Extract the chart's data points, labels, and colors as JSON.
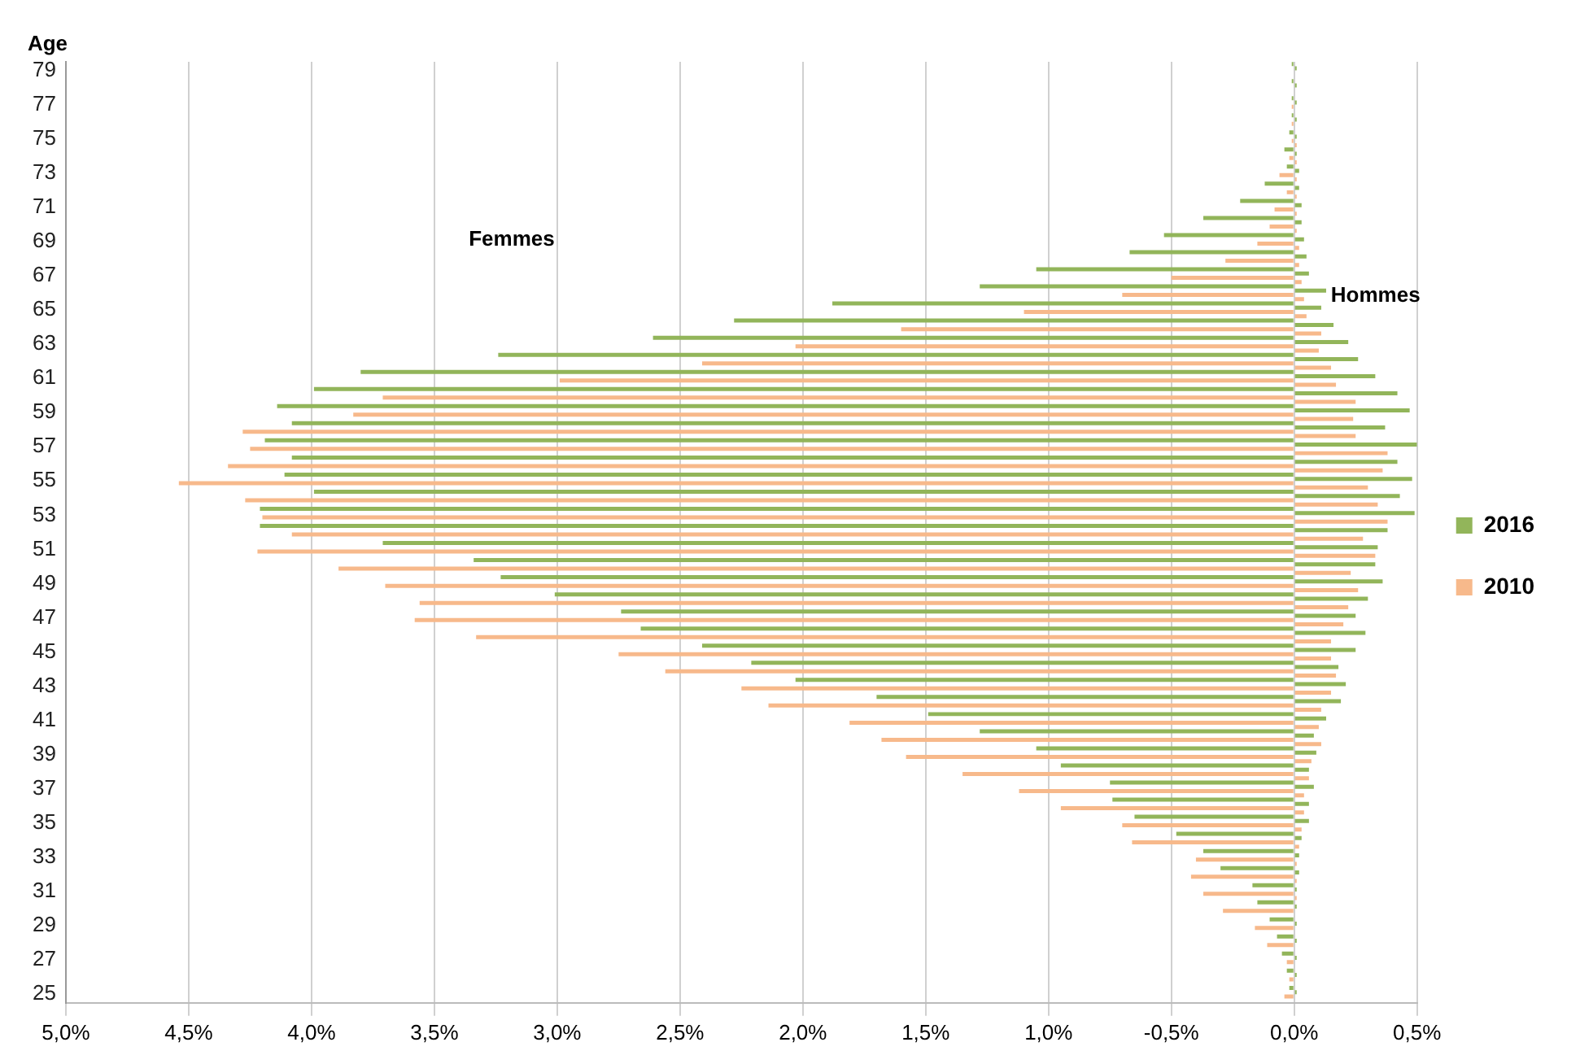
{
  "chart_data": {
    "type": "bar",
    "orientation": "horizontal",
    "ylabel": "Age",
    "annotations": [
      "Femmes",
      "Hommes"
    ],
    "categories": [
      "79",
      null,
      "77",
      null,
      "75",
      null,
      "73",
      null,
      "71",
      null,
      "69",
      null,
      "67",
      null,
      "65",
      null,
      "63",
      null,
      "61",
      null,
      "59",
      null,
      "57",
      null,
      "55",
      null,
      "53",
      null,
      "51",
      null,
      "49",
      null,
      "47",
      null,
      "45",
      null,
      "43",
      null,
      "41",
      null,
      "39",
      null,
      "37",
      null,
      "35",
      null,
      "33",
      null,
      "31",
      null,
      "29",
      null,
      "27",
      null,
      "25"
    ],
    "series": [
      {
        "name": "2016",
        "color": "#92b55a",
        "values": [
          -0.01,
          -0.01,
          -0.01,
          -0.01,
          -0.02,
          -0.04,
          -0.03,
          -0.12,
          -0.22,
          -0.37,
          -0.53,
          -0.67,
          -1.05,
          -1.28,
          -1.88,
          -2.28,
          -2.61,
          -3.24,
          -3.8,
          -3.99,
          -4.14,
          -4.08,
          -4.19,
          -4.08,
          -4.11,
          -3.99,
          -4.21,
          -4.21,
          -3.71,
          -3.34,
          -3.23,
          -3.01,
          -2.74,
          -2.66,
          -2.41,
          -2.21,
          -2.03,
          -1.7,
          -1.49,
          -1.28,
          -1.05,
          -0.95,
          -0.75,
          -0.74,
          -0.65,
          -0.48,
          -0.37,
          -0.3,
          -0.17,
          -0.15,
          -0.1,
          -0.07,
          -0.05,
          -0.03,
          -0.02
        ]
      },
      {
        "color": "#92b55a",
        "values": [
          0.01,
          0.01,
          0.01,
          0.01,
          0.01,
          0.01,
          0.02,
          0.02,
          0.03,
          0.03,
          0.04,
          0.05,
          0.06,
          0.13,
          0.11,
          0.16,
          0.22,
          0.26,
          0.33,
          0.42,
          0.47,
          0.37,
          0.5,
          0.42,
          0.48,
          0.43,
          0.49,
          0.38,
          0.34,
          0.33,
          0.36,
          0.3,
          0.25,
          0.29,
          0.25,
          0.18,
          0.21,
          0.19,
          0.13,
          0.08,
          0.09,
          0.06,
          0.08,
          0.06,
          0.06,
          0.03,
          0.02,
          0.02,
          0.01,
          0.01,
          0.01,
          0.01,
          0.01,
          0.01,
          0.01
        ]
      },
      {
        "name": "2010",
        "color": "#f7b98b",
        "values": [
          0,
          0,
          -0.01,
          -0.01,
          -0.01,
          -0.02,
          -0.06,
          -0.03,
          -0.08,
          -0.1,
          -0.15,
          -0.28,
          -0.5,
          -0.7,
          -1.1,
          -1.6,
          -2.03,
          -2.41,
          -2.99,
          -3.71,
          -3.83,
          -4.28,
          -4.25,
          -4.34,
          -4.54,
          -4.27,
          -4.2,
          -4.08,
          -4.22,
          -3.89,
          -3.7,
          -3.56,
          -3.58,
          -3.33,
          -2.75,
          -2.56,
          -2.25,
          -2.14,
          -1.81,
          -1.68,
          -1.58,
          -1.35,
          -1.12,
          -0.95,
          -0.7,
          -0.66,
          -0.4,
          -0.42,
          -0.37,
          -0.29,
          -0.16,
          -0.11,
          -0.03,
          -0.02,
          -0.04
        ]
      },
      {
        "color": "#f7b98b",
        "values": [
          0,
          0,
          0,
          0,
          0.01,
          0.01,
          0.01,
          0.01,
          0.01,
          0.01,
          0.02,
          0.02,
          0.03,
          0.04,
          0.05,
          0.11,
          0.1,
          0.15,
          0.17,
          0.25,
          0.24,
          0.25,
          0.38,
          0.36,
          0.3,
          0.34,
          0.38,
          0.28,
          0.33,
          0.23,
          0.26,
          0.22,
          0.2,
          0.15,
          0.15,
          0.17,
          0.15,
          0.11,
          0.1,
          0.11,
          0.07,
          0.06,
          0.04,
          0.04,
          0.03,
          0.02,
          0.01,
          0.01,
          0.01,
          0,
          0,
          0,
          0,
          0,
          0
        ]
      }
    ],
    "xlim": [
      -5.0,
      0.5
    ],
    "xticks": [
      {
        "value": -5.0,
        "label": "5,0%"
      },
      {
        "value": -4.5,
        "label": "4,5%"
      },
      {
        "value": -4.0,
        "label": "4,0%"
      },
      {
        "value": -3.5,
        "label": "3,5%"
      },
      {
        "value": -3.0,
        "label": "3,0%"
      },
      {
        "value": -2.5,
        "label": "2,5%"
      },
      {
        "value": -2.0,
        "label": "2,0%"
      },
      {
        "value": -1.5,
        "label": "1,5%"
      },
      {
        "value": -1.0,
        "label": "1,0%"
      },
      {
        "value": -0.5,
        "label": "-0,5%"
      },
      {
        "value": 0,
        "label": "0,0%"
      },
      {
        "value": 0.5,
        "label": "0,5%"
      }
    ],
    "grid": "x",
    "legend": "right"
  }
}
